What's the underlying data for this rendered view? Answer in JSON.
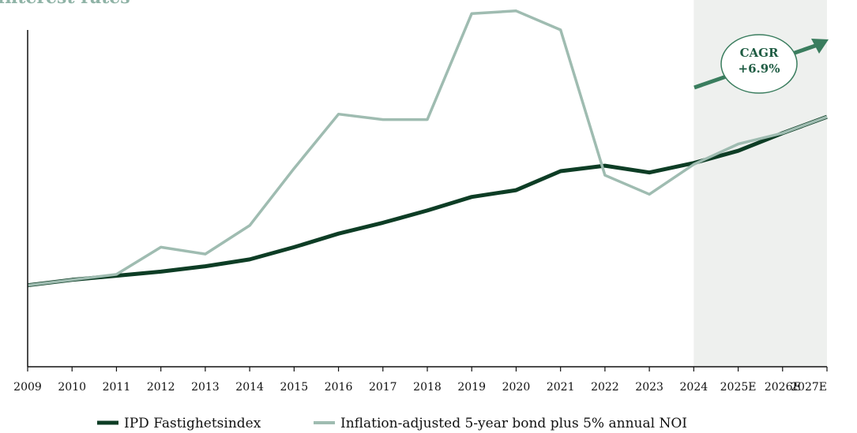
{
  "title": "Interest rates",
  "colors": {
    "series1": "#0d3d25",
    "series2": "#9fbcb1",
    "forecast_band": "#eef0ee",
    "arrow": "#3a7d5e",
    "cagr_text": "#1f5c43",
    "title": "#8fb3a6"
  },
  "annotation": {
    "line1": "CAGR",
    "line2": "+6.9%"
  },
  "chart_data": {
    "type": "line",
    "title": "Interest rates",
    "x": [
      "2009",
      "2010",
      "2011",
      "2012",
      "2013",
      "2014",
      "2015",
      "2016",
      "2017",
      "2018",
      "2019",
      "2020",
      "2021",
      "2022",
      "2023",
      "2024",
      "2025E",
      "2026E",
      "2027E"
    ],
    "forecast_start": "2024",
    "series": [
      {
        "name": "IPD Fastighetsindex",
        "values": [
          100,
          104,
          107,
          110,
          114,
          119,
          128,
          138,
          146,
          155,
          165,
          170,
          184,
          188,
          183,
          190,
          199,
          212,
          224
        ]
      },
      {
        "name": "Inflation-adjusted 5-year bond plus 5% annual NOI",
        "values": [
          100,
          104,
          108,
          128,
          123,
          144,
          186,
          226,
          222,
          222,
          300,
          302,
          288,
          181,
          167,
          189,
          204,
          212,
          224
        ]
      }
    ],
    "ylim": [
      40,
      310
    ],
    "grid": false,
    "legend": "bottom"
  }
}
